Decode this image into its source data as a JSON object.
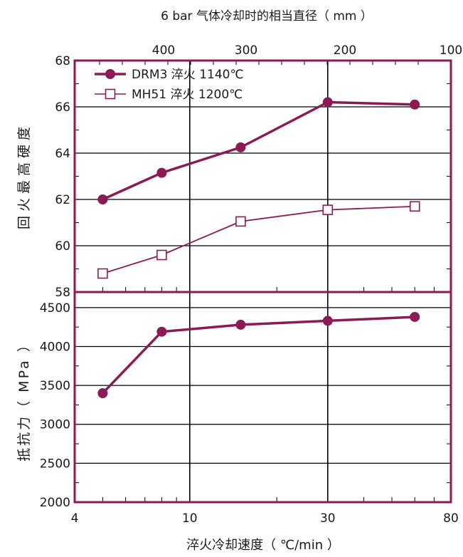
{
  "colors": {
    "frame": "#8b1a55",
    "series": "#8b1a55",
    "grid": "#000000",
    "text": "#1a1a1a"
  },
  "top_axis_label": "6 bar 气体冷却时的相当直径（ mm ）",
  "bottom_axis_label": "淬火冷却速度（ ℃/min ）",
  "chart_data": [
    {
      "type": "line",
      "panel": "top",
      "ylabel": "回火最高硬度",
      "ylim": [
        58,
        68
      ],
      "yticks": [
        "58",
        "60",
        "62",
        "64",
        "66",
        "68"
      ],
      "xscale": "log",
      "xlim": [
        4,
        80
      ],
      "xticks": [
        "4",
        "10",
        "30",
        "80"
      ],
      "top_xticks": [
        "400",
        "300",
        "200",
        "100"
      ],
      "legend": "top-left",
      "grid": true,
      "series": [
        {
          "name": "DRM3  淬火 1140℃",
          "marker": "filled-circle",
          "x": [
            5,
            8,
            15,
            30,
            60
          ],
          "y": [
            62.0,
            63.15,
            64.25,
            66.2,
            66.1
          ]
        },
        {
          "name": "MH51  淬火 1200℃",
          "marker": "open-square",
          "x": [
            5,
            8,
            15,
            30,
            60
          ],
          "y": [
            58.8,
            59.6,
            61.05,
            61.55,
            61.7
          ]
        }
      ]
    },
    {
      "type": "line",
      "panel": "bottom",
      "ylabel": "抵抗力（ MPa ）",
      "ylim": [
        2000,
        4700
      ],
      "yticks": [
        "2000",
        "2500",
        "3000",
        "3500",
        "4000",
        "4500"
      ],
      "xscale": "log",
      "xlim": [
        4,
        80
      ],
      "xticks": [
        "4",
        "10",
        "30",
        "80"
      ],
      "grid": true,
      "series": [
        {
          "marker": "filled-circle",
          "x": [
            5,
            8,
            15,
            30,
            60
          ],
          "y": [
            3400,
            4190,
            4280,
            4330,
            4380
          ]
        }
      ]
    }
  ]
}
